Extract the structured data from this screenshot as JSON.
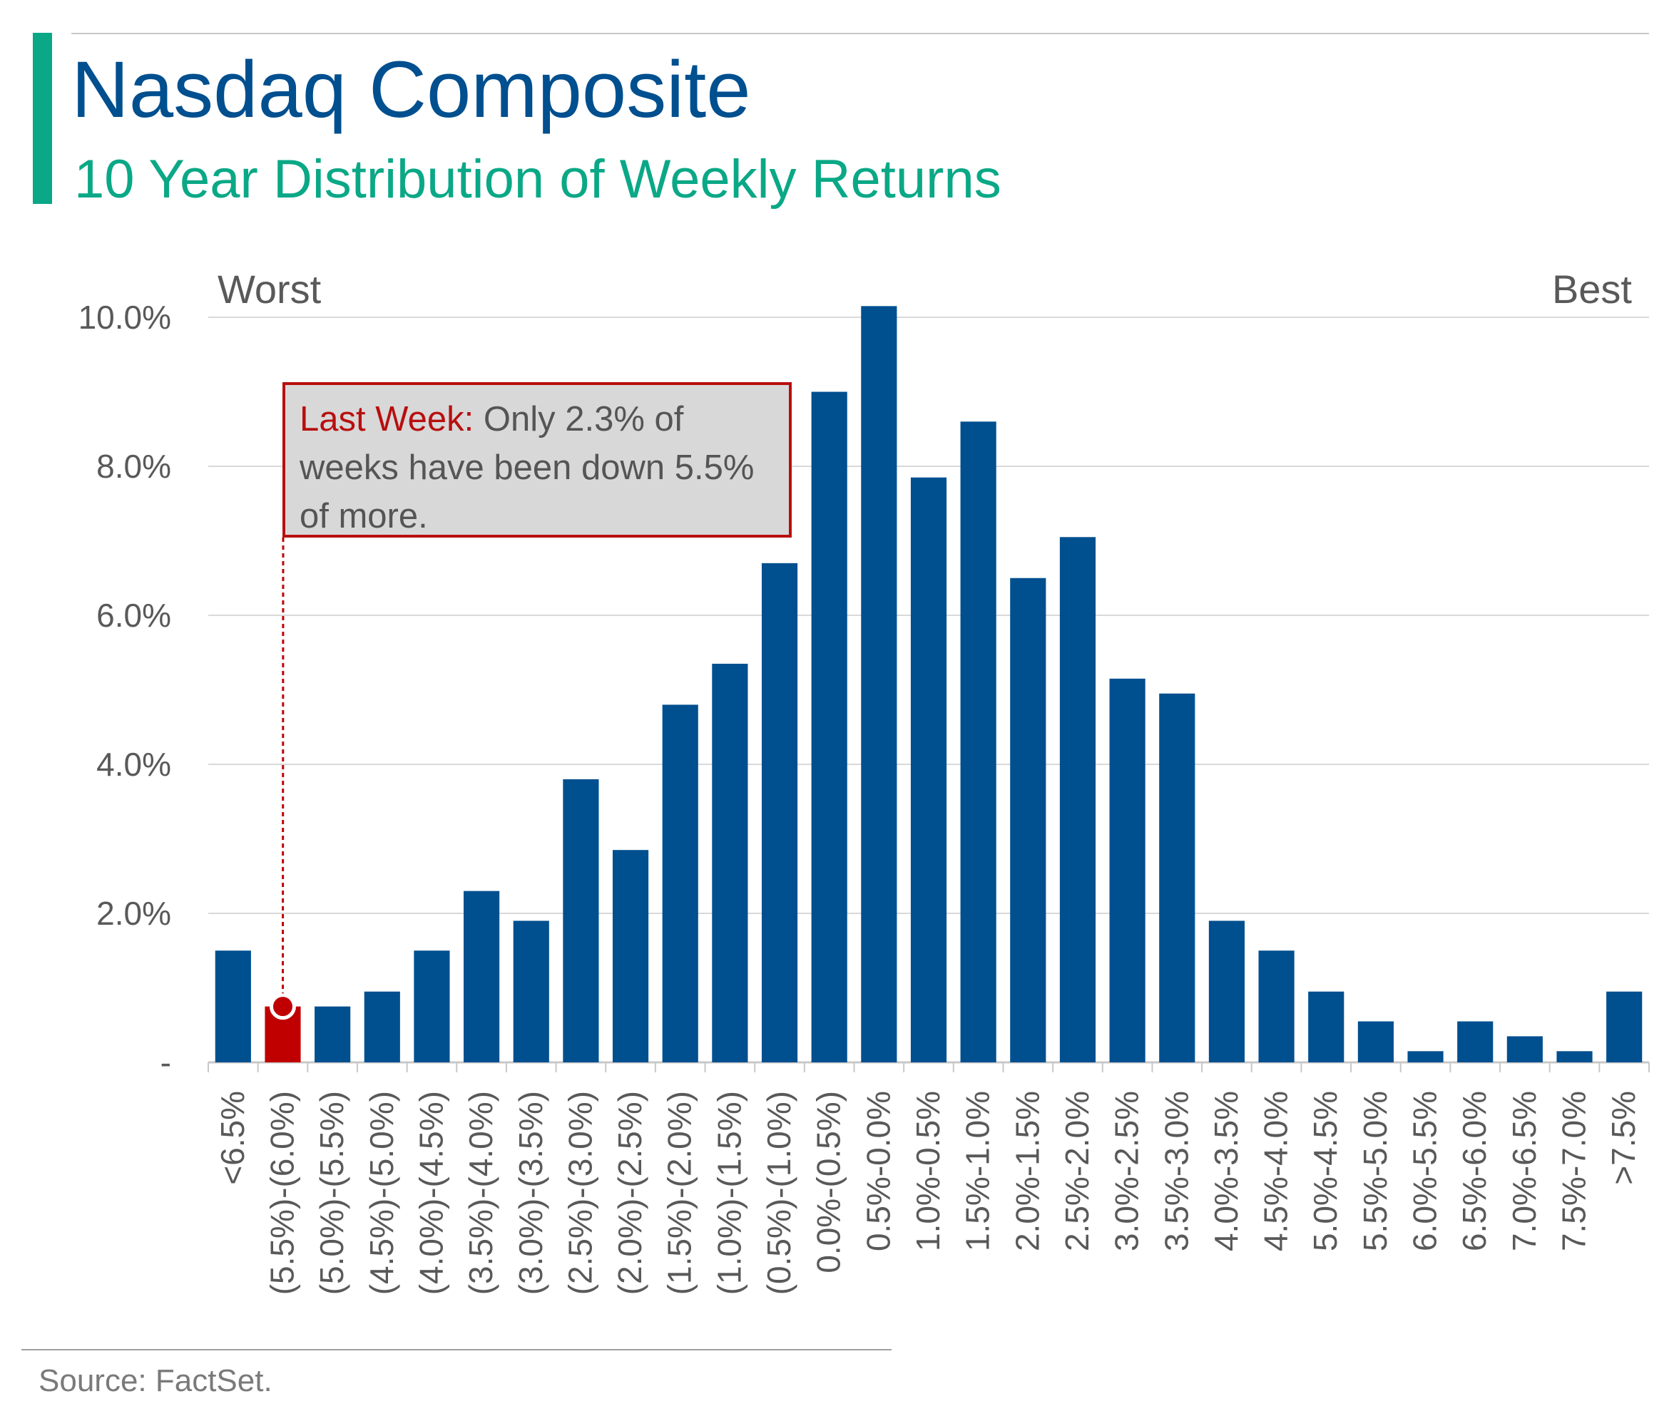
{
  "header": {
    "title": "Nasdaq Composite",
    "subtitle": "10 Year Distribution of Weekly Returns"
  },
  "colors": {
    "accent": "#0aa886",
    "bar": "#004f8f",
    "highlight": "#c00000",
    "title": "#004f8f",
    "text": "#595959",
    "grid": "#d9d9d9"
  },
  "chart_data": {
    "type": "bar",
    "title": "Nasdaq Composite",
    "subtitle": "10 Year Distribution of Weekly Returns",
    "xlabel": "",
    "ylabel": "",
    "ylim": [
      0,
      10.0
    ],
    "yticks": [
      0,
      2.0,
      4.0,
      6.0,
      8.0,
      10.0
    ],
    "ytick_labels": [
      "-",
      "2.0%",
      "4.0%",
      "6.0%",
      "8.0%",
      "10.0%"
    ],
    "grid": true,
    "corner_labels": {
      "left": "Worst",
      "right": "Best"
    },
    "highlight_index": 1,
    "categories": [
      "<6.5%",
      "(5.5%)-(6.0%)",
      "(5.0%)-(5.5%)",
      "(4.5%)-(5.0%)",
      "(4.0%)-(4.5%)",
      "(3.5%)-(4.0%)",
      "(3.0%)-(3.5%)",
      "(2.5%)-(3.0%)",
      "(2.0%)-(2.5%)",
      "(1.5%)-(2.0%)",
      "(1.0%)-(1.5%)",
      "(0.5%)-(1.0%)",
      "0.0%-(0.5%)",
      "0.5%-0.0%",
      "1.0%-0.5%",
      "1.5%-1.0%",
      "2.0%-1.5%",
      "2.5%-2.0%",
      "3.0%-2.5%",
      "3.5%-3.0%",
      "4.0%-3.5%",
      "4.5%-4.0%",
      "5.0%-4.5%",
      "5.5%-5.0%",
      "6.0%-5.5%",
      "6.5%-6.0%",
      "7.0%-6.5%",
      "7.5%-7.0%",
      ">7.5%"
    ],
    "values": [
      1.5,
      0.75,
      0.75,
      0.95,
      1.5,
      2.3,
      1.9,
      3.8,
      2.85,
      4.8,
      5.35,
      6.7,
      9.0,
      10.15,
      7.85,
      8.6,
      6.5,
      7.05,
      5.15,
      4.95,
      1.9,
      1.5,
      0.95,
      0.55,
      0.15,
      0.55,
      0.35,
      0.15,
      0.95
    ]
  },
  "callout": {
    "highlight": "Last Week:",
    "text": " Only 2.3% of weeks have been down 5.5% of more."
  },
  "footer": {
    "source": "Source: FactSet."
  }
}
